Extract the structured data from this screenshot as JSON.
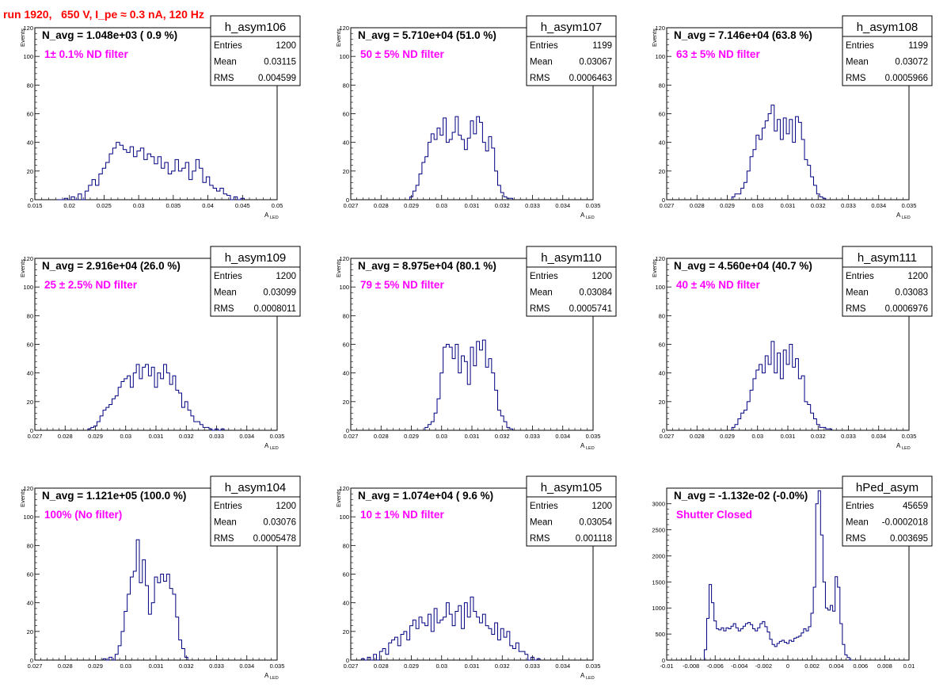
{
  "canvas_title": "run 1920,   650 V, I_pe ≈ 0.3 nA, 120 Hz",
  "colors": {
    "hist": "#000080",
    "label": "#ff00ff",
    "title": "#ff0000",
    "axis": "#000000"
  },
  "chart_data": [
    {
      "type": "histogram",
      "name": "h_asym106",
      "navg": "N_avg = 1.048e+03 ( 0.9 %)",
      "label": "1± 0.1% ND filter",
      "stats": {
        "entries": "1200",
        "mean": "0.03115",
        "rms": "0.004599"
      },
      "xlim": [
        0.015,
        0.05
      ],
      "ylim": [
        0,
        120
      ],
      "xticks": [
        "0.015",
        "0.02",
        "0.025",
        "0.03",
        "0.035",
        "0.04",
        "0.045",
        "0.05"
      ],
      "yticks": [
        "0",
        "20",
        "40",
        "60",
        "80",
        "100",
        "120"
      ],
      "ylabel": "Events",
      "xlabel": "A",
      "xlabel_sub": "LED",
      "x": [
        0.0185,
        0.0195,
        0.0205,
        0.0215,
        0.0225,
        0.023,
        0.0235,
        0.024,
        0.0245,
        0.025,
        0.0255,
        0.026,
        0.0265,
        0.027,
        0.0275,
        0.028,
        0.0285,
        0.029,
        0.0295,
        0.03,
        0.0305,
        0.031,
        0.0315,
        0.032,
        0.0325,
        0.033,
        0.0335,
        0.034,
        0.0345,
        0.035,
        0.0355,
        0.036,
        0.0365,
        0.037,
        0.0375,
        0.038,
        0.0385,
        0.039,
        0.0395,
        0.04,
        0.0405,
        0.041,
        0.0415,
        0.042,
        0.0425,
        0.043,
        0.044,
        0.045
      ],
      "values": [
        0,
        1,
        2,
        4,
        6,
        10,
        14,
        10,
        18,
        22,
        26,
        32,
        36,
        40,
        38,
        35,
        33,
        37,
        30,
        34,
        36,
        28,
        32,
        30,
        25,
        30,
        22,
        26,
        18,
        20,
        28,
        20,
        22,
        26,
        14,
        20,
        28,
        22,
        12,
        16,
        10,
        8,
        6,
        8,
        4,
        3,
        2,
        1
      ]
    },
    {
      "type": "histogram",
      "name": "h_asym107",
      "navg": "N_avg = 5.710e+04 (51.0 %)",
      "label": "50 ± 5% ND filter",
      "stats": {
        "entries": "1199",
        "mean": "0.03067",
        "rms": "0.0006463"
      },
      "xlim": [
        0.027,
        0.035
      ],
      "ylim": [
        0,
        120
      ],
      "xticks": [
        "0.027",
        "0.028",
        "0.029",
        "0.03",
        "0.031",
        "0.032",
        "0.033",
        "0.034",
        "0.035"
      ],
      "yticks": [
        "0",
        "20",
        "40",
        "60",
        "80",
        "100",
        "120"
      ],
      "ylabel": "Events",
      "xlabel": "A",
      "xlabel_sub": "LED",
      "x": [
        0.029,
        0.0291,
        0.0292,
        0.0293,
        0.0294,
        0.0295,
        0.0296,
        0.0297,
        0.0298,
        0.0299,
        0.03,
        0.0301,
        0.0302,
        0.0303,
        0.0304,
        0.0305,
        0.0306,
        0.0307,
        0.0308,
        0.0309,
        0.031,
        0.0311,
        0.0312,
        0.0313,
        0.0314,
        0.0315,
        0.0316,
        0.0317,
        0.0318,
        0.0319,
        0.032,
        0.0321,
        0.0322,
        0.0323
      ],
      "values": [
        2,
        6,
        10,
        18,
        26,
        30,
        40,
        46,
        42,
        50,
        45,
        57,
        40,
        42,
        47,
        58,
        45,
        42,
        35,
        43,
        55,
        46,
        58,
        54,
        40,
        34,
        44,
        36,
        20,
        10,
        5,
        2,
        1,
        1
      ]
    },
    {
      "type": "histogram",
      "name": "h_asym108",
      "navg": "N_avg = 7.146e+04 (63.8 %)",
      "label": "63 ± 5% ND filter",
      "stats": {
        "entries": "1199",
        "mean": "0.03072",
        "rms": "0.0005966"
      },
      "xlim": [
        0.027,
        0.035
      ],
      "ylim": [
        0,
        120
      ],
      "xticks": [
        "0.027",
        "0.028",
        "0.029",
        "0.03",
        "0.031",
        "0.032",
        "0.033",
        "0.034",
        "0.035"
      ],
      "yticks": [
        "0",
        "20",
        "40",
        "60",
        "80",
        "100",
        "120"
      ],
      "ylabel": "Events",
      "xlabel": "A",
      "xlabel_sub": "LED",
      "x": [
        0.0292,
        0.0293,
        0.0294,
        0.0295,
        0.0296,
        0.0297,
        0.0298,
        0.0299,
        0.03,
        0.0301,
        0.0302,
        0.0303,
        0.0304,
        0.0305,
        0.0306,
        0.0307,
        0.0308,
        0.0309,
        0.031,
        0.0311,
        0.0312,
        0.0313,
        0.0314,
        0.0315,
        0.0316,
        0.0317,
        0.0318,
        0.0319,
        0.032,
        0.0321,
        0.0322
      ],
      "values": [
        2,
        4,
        4,
        8,
        12,
        20,
        30,
        35,
        45,
        42,
        50,
        55,
        60,
        66,
        48,
        56,
        42,
        57,
        46,
        56,
        40,
        58,
        54,
        42,
        28,
        24,
        16,
        10,
        4,
        2,
        1
      ]
    },
    {
      "type": "histogram",
      "name": "h_asym109",
      "navg": "N_avg = 2.916e+04 (26.0 %)",
      "label": "25 ± 2.5% ND filter",
      "stats": {
        "entries": "1200",
        "mean": "0.03099",
        "rms": "0.0008011"
      },
      "xlim": [
        0.027,
        0.035
      ],
      "ylim": [
        0,
        120
      ],
      "xticks": [
        "0.027",
        "0.028",
        "0.029",
        "0.03",
        "0.031",
        "0.032",
        "0.033",
        "0.034",
        "0.035"
      ],
      "yticks": [
        "0",
        "20",
        "40",
        "60",
        "80",
        "100",
        "120"
      ],
      "ylabel": "Events",
      "xlabel": "A",
      "xlabel_sub": "LED",
      "x": [
        0.0288,
        0.0289,
        0.029,
        0.0291,
        0.0292,
        0.0293,
        0.0294,
        0.0295,
        0.0296,
        0.0297,
        0.0298,
        0.0299,
        0.03,
        0.0301,
        0.0302,
        0.0303,
        0.0304,
        0.0305,
        0.0306,
        0.0307,
        0.0308,
        0.0309,
        0.031,
        0.0311,
        0.0312,
        0.0313,
        0.0314,
        0.0315,
        0.0316,
        0.0317,
        0.0318,
        0.0319,
        0.032,
        0.0321,
        0.0322,
        0.0323,
        0.0324,
        0.0325,
        0.0326,
        0.0327,
        0.0328,
        0.033,
        0.0332
      ],
      "values": [
        1,
        2,
        3,
        6,
        10,
        14,
        16,
        18,
        22,
        24,
        30,
        34,
        36,
        38,
        30,
        40,
        46,
        36,
        44,
        46,
        38,
        44,
        30,
        40,
        36,
        46,
        40,
        32,
        38,
        28,
        26,
        16,
        20,
        14,
        10,
        6,
        6,
        4,
        2,
        2,
        1,
        1,
        1
      ]
    },
    {
      "type": "histogram",
      "name": "h_asym110",
      "navg": "N_avg = 8.975e+04 (80.1 %)",
      "label": "79 ± 5% ND filter",
      "stats": {
        "entries": "1200",
        "mean": "0.03084",
        "rms": "0.0005741"
      },
      "xlim": [
        0.027,
        0.035
      ],
      "ylim": [
        0,
        120
      ],
      "xticks": [
        "0.027",
        "0.028",
        "0.029",
        "0.03",
        "0.031",
        "0.032",
        "0.033",
        "0.034",
        "0.035"
      ],
      "yticks": [
        "0",
        "20",
        "40",
        "60",
        "80",
        "100",
        "120"
      ],
      "ylabel": "Events",
      "xlabel": "A",
      "xlabel_sub": "LED",
      "x": [
        0.0295,
        0.0296,
        0.0297,
        0.0298,
        0.0299,
        0.03,
        0.0301,
        0.0302,
        0.0303,
        0.0304,
        0.0305,
        0.0306,
        0.0307,
        0.0308,
        0.0309,
        0.031,
        0.0311,
        0.0312,
        0.0313,
        0.0314,
        0.0315,
        0.0316,
        0.0317,
        0.0318,
        0.0319,
        0.032,
        0.0321,
        0.0322,
        0.0323
      ],
      "values": [
        2,
        4,
        6,
        12,
        22,
        40,
        58,
        60,
        58,
        50,
        60,
        40,
        52,
        48,
        32,
        58,
        45,
        62,
        56,
        63,
        44,
        50,
        40,
        28,
        14,
        10,
        6,
        2,
        1
      ]
    },
    {
      "type": "histogram",
      "name": "h_asym111",
      "navg": "N_avg = 4.560e+04 (40.7 %)",
      "label": "40 ± 4% ND filter",
      "stats": {
        "entries": "1200",
        "mean": "0.03083",
        "rms": "0.0006976"
      },
      "xlim": [
        0.027,
        0.035
      ],
      "ylim": [
        0,
        120
      ],
      "xticks": [
        "0.027",
        "0.028",
        "0.029",
        "0.03",
        "0.031",
        "0.032",
        "0.033",
        "0.034",
        "0.035"
      ],
      "yticks": [
        "0",
        "20",
        "40",
        "60",
        "80",
        "100",
        "120"
      ],
      "ylabel": "Events",
      "xlabel": "A",
      "xlabel_sub": "LED",
      "x": [
        0.0292,
        0.0293,
        0.0294,
        0.0295,
        0.0296,
        0.0297,
        0.0298,
        0.0299,
        0.03,
        0.0301,
        0.0302,
        0.0303,
        0.0304,
        0.0305,
        0.0306,
        0.0307,
        0.0308,
        0.0309,
        0.031,
        0.0311,
        0.0312,
        0.0313,
        0.0314,
        0.0315,
        0.0316,
        0.0317,
        0.0318,
        0.0319,
        0.032,
        0.0321,
        0.0322,
        0.0323,
        0.0324
      ],
      "values": [
        2,
        4,
        8,
        12,
        14,
        20,
        28,
        36,
        42,
        46,
        40,
        52,
        46,
        62,
        40,
        54,
        36,
        56,
        46,
        60,
        44,
        50,
        36,
        38,
        20,
        18,
        12,
        8,
        4,
        2,
        2,
        1,
        1
      ]
    },
    {
      "type": "histogram",
      "name": "h_asym104",
      "navg": "N_avg = 1.121e+05 (100.0 %)",
      "label": "100% (No filter)",
      "stats": {
        "entries": "1200",
        "mean": "0.03076",
        "rms": "0.0005478"
      },
      "xlim": [
        0.027,
        0.035
      ],
      "ylim": [
        0,
        120
      ],
      "xticks": [
        "0.027",
        "0.028",
        "0.029",
        "0.03",
        "0.031",
        "0.032",
        "0.033",
        "0.034",
        "0.035"
      ],
      "yticks": [
        "0",
        "20",
        "40",
        "60",
        "80",
        "100",
        "120"
      ],
      "ylabel": "Events",
      "xlabel": "A",
      "xlabel_sub": "LED",
      "x": [
        0.0293,
        0.0295,
        0.0297,
        0.0298,
        0.0299,
        0.03,
        0.0301,
        0.0302,
        0.0303,
        0.0304,
        0.0305,
        0.0306,
        0.0307,
        0.0308,
        0.0309,
        0.031,
        0.0311,
        0.0312,
        0.0313,
        0.0314,
        0.0315,
        0.0316,
        0.0317,
        0.0318,
        0.0319,
        0.032
      ],
      "values": [
        1,
        2,
        4,
        10,
        20,
        34,
        46,
        58,
        62,
        84,
        54,
        70,
        52,
        32,
        40,
        58,
        54,
        60,
        55,
        60,
        50,
        46,
        30,
        14,
        8,
        2
      ]
    },
    {
      "type": "histogram",
      "name": "h_asym105",
      "navg": "N_avg = 1.074e+04 ( 9.6 %)",
      "label": "10 ± 1% ND filter",
      "stats": {
        "entries": "1200",
        "mean": "0.03054",
        "rms": "0.001118"
      },
      "xlim": [
        0.027,
        0.035
      ],
      "ylim": [
        0,
        120
      ],
      "xticks": [
        "0.027",
        "0.028",
        "0.029",
        "0.03",
        "0.031",
        "0.032",
        "0.033",
        "0.034",
        "0.035"
      ],
      "yticks": [
        "0",
        "20",
        "40",
        "60",
        "80",
        "100",
        "120"
      ],
      "ylabel": "Events",
      "xlabel": "A",
      "xlabel_sub": "LED",
      "x": [
        0.0274,
        0.0276,
        0.0278,
        0.028,
        0.0281,
        0.0282,
        0.0283,
        0.0284,
        0.0285,
        0.0286,
        0.0287,
        0.0288,
        0.0289,
        0.029,
        0.0291,
        0.0292,
        0.0293,
        0.0294,
        0.0295,
        0.0296,
        0.0297,
        0.0298,
        0.0299,
        0.03,
        0.0301,
        0.0302,
        0.0303,
        0.0304,
        0.0305,
        0.0306,
        0.0307,
        0.0308,
        0.0309,
        0.031,
        0.0311,
        0.0312,
        0.0313,
        0.0314,
        0.0315,
        0.0316,
        0.0317,
        0.0318,
        0.0319,
        0.032,
        0.0321,
        0.0322,
        0.0323,
        0.0324,
        0.0325,
        0.0326,
        0.0327,
        0.0328,
        0.033,
        0.0332
      ],
      "values": [
        1,
        2,
        4,
        6,
        8,
        4,
        12,
        14,
        16,
        10,
        18,
        20,
        14,
        24,
        28,
        22,
        30,
        26,
        24,
        32,
        20,
        36,
        26,
        28,
        30,
        40,
        32,
        24,
        34,
        38,
        22,
        40,
        30,
        44,
        34,
        30,
        26,
        32,
        24,
        22,
        18,
        26,
        14,
        22,
        16,
        20,
        10,
        8,
        12,
        6,
        6,
        4,
        2,
        1
      ]
    },
    {
      "type": "histogram",
      "name": "hPed_asym",
      "navg": "N_avg = -1.132e-02 (-0.0%)",
      "label": "Shutter Closed",
      "stats": {
        "entries": "45659",
        "mean": "-0.0002018",
        "rms": "0.003695"
      },
      "xlim": [
        -0.01,
        0.01
      ],
      "ylim": [
        0,
        3300
      ],
      "xticks": [
        "-0.01",
        "-0.008",
        "-0.006",
        "-0.004",
        "-0.002",
        "0",
        "0.002",
        "0.004",
        "0.006",
        "0.008",
        "0.01"
      ],
      "yticks": [
        "0",
        "500",
        "1000",
        "1500",
        "2000",
        "2500",
        "3000"
      ],
      "ylabel": "",
      "xlabel": "",
      "xlabel_sub": "",
      "x": [
        -0.0068,
        -0.0066,
        -0.0064,
        -0.0062,
        -0.006,
        -0.0058,
        -0.0056,
        -0.0054,
        -0.0052,
        -0.005,
        -0.0048,
        -0.0046,
        -0.0044,
        -0.0042,
        -0.004,
        -0.0038,
        -0.0036,
        -0.0034,
        -0.0032,
        -0.003,
        -0.0028,
        -0.0026,
        -0.0024,
        -0.0022,
        -0.002,
        -0.0018,
        -0.0016,
        -0.0014,
        -0.0012,
        -0.001,
        -0.0008,
        -0.0006,
        -0.0004,
        -0.0002,
        0,
        0.0002,
        0.0004,
        0.0006,
        0.0008,
        0.001,
        0.0012,
        0.0014,
        0.0016,
        0.0018,
        0.002,
        0.0022,
        0.0024,
        0.0026,
        0.0028,
        0.003,
        0.0032,
        0.0034,
        0.0036,
        0.0038,
        0.004,
        0.0042,
        0.0044,
        0.0046,
        0.0048,
        0.005,
        0.0052
      ],
      "values": [
        200,
        800,
        1450,
        1100,
        750,
        600,
        580,
        620,
        560,
        620,
        600,
        650,
        700,
        620,
        560,
        600,
        650,
        700,
        720,
        680,
        600,
        560,
        620,
        700,
        740,
        640,
        540,
        400,
        300,
        260,
        320,
        360,
        380,
        340,
        320,
        380,
        360,
        420,
        440,
        460,
        520,
        600,
        560,
        640,
        900,
        1400,
        3000,
        3250,
        2400,
        1500,
        1000,
        960,
        1050,
        940,
        1600,
        1400,
        700,
        300,
        100,
        50,
        0
      ]
    }
  ]
}
